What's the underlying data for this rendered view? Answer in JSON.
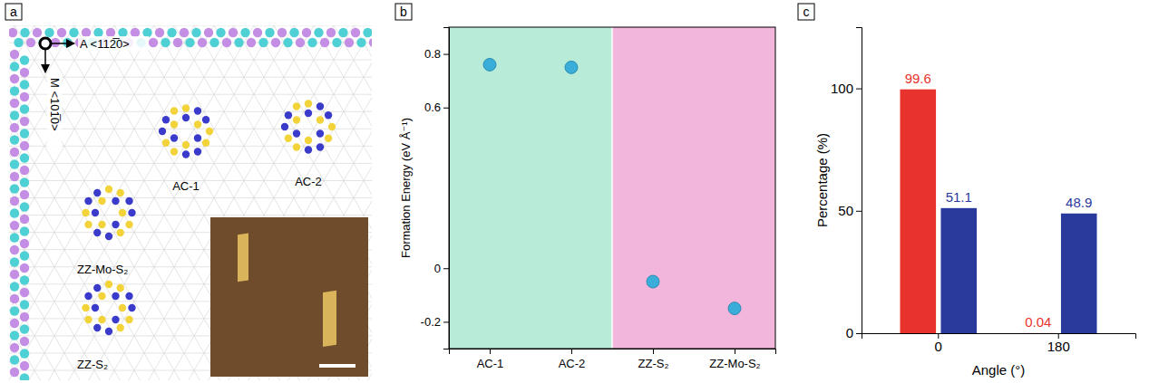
{
  "panel_labels": [
    "a",
    "b",
    "c"
  ],
  "diagram": {
    "directions": [
      "A <112̅0>",
      "M <101̅0>"
    ],
    "structures": [
      "AC-1",
      "AC-2",
      "ZZ-Mo-S₂",
      "ZZ-S₂"
    ]
  },
  "chart_data": [
    {
      "type": "scatter",
      "categories": [
        "AC-1",
        "AC-2",
        "ZZ-S₂",
        "ZZ-Mo-S₂"
      ],
      "values": [
        0.76,
        0.75,
        -0.05,
        -0.15
      ],
      "color": "#3aaed8",
      "y_label": "Formation Energy (eV Å⁻¹)",
      "ylim": [
        -0.3,
        0.9
      ],
      "yticks": [
        -0.2,
        0,
        0.6,
        0.8
      ]
    },
    {
      "type": "bar",
      "categories": [
        "0",
        "180"
      ],
      "x_label": "Angle (°)",
      "y_label": "Percentage (%)",
      "series": [
        {
          "color": "#e8322e",
          "values": [
            99.6,
            0.04
          ]
        },
        {
          "color": "#2a3a9c",
          "values": [
            51.1,
            48.9
          ]
        }
      ],
      "ylim": [
        0,
        125
      ],
      "yticks": [
        0,
        50,
        100
      ],
      "data_labels": true
    }
  ]
}
